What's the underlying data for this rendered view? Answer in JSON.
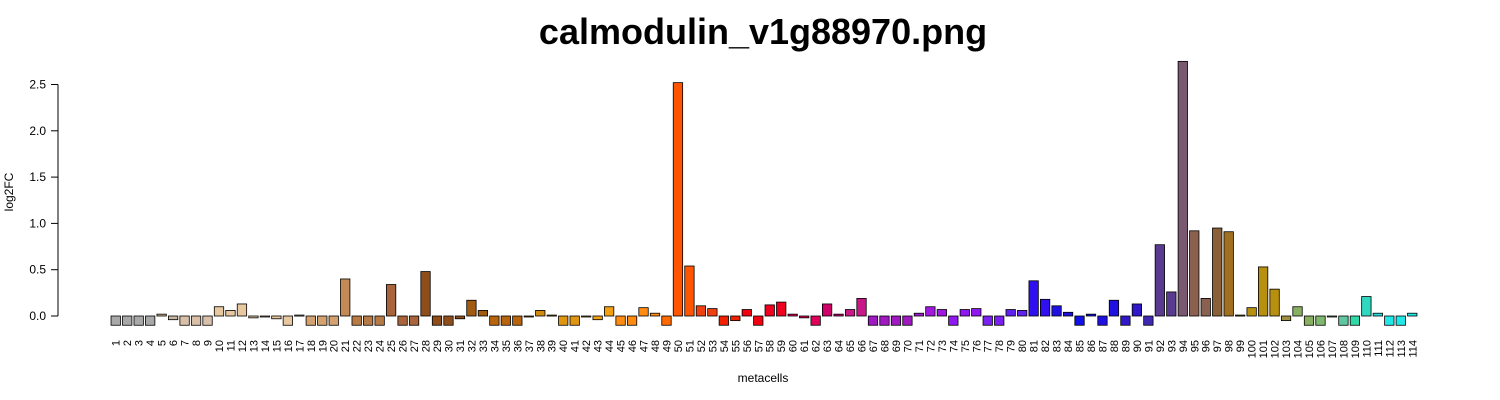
{
  "chart_data": {
    "type": "bar",
    "title": "calmodulin_v1g88970.png",
    "xlabel": "metacells",
    "ylabel": "log2FC",
    "ylim": [
      -0.1,
      2.75
    ],
    "yticks": [
      0.0,
      0.5,
      1.0,
      1.5,
      2.0,
      2.5
    ],
    "ytick_labels": [
      "0.0",
      "0.5",
      "1.0",
      "1.5",
      "2.0",
      "2.5"
    ],
    "grid": false,
    "categories": [
      "1",
      "2",
      "3",
      "4",
      "5",
      "6",
      "7",
      "8",
      "9",
      "10",
      "11",
      "12",
      "13",
      "14",
      "15",
      "16",
      "17",
      "18",
      "19",
      "20",
      "21",
      "22",
      "23",
      "24",
      "25",
      "26",
      "27",
      "28",
      "29",
      "30",
      "31",
      "32",
      "33",
      "34",
      "35",
      "36",
      "37",
      "38",
      "39",
      "40",
      "41",
      "42",
      "43",
      "44",
      "45",
      "46",
      "47",
      "48",
      "49",
      "50",
      "51",
      "52",
      "53",
      "54",
      "55",
      "56",
      "57",
      "58",
      "59",
      "60",
      "61",
      "62",
      "63",
      "64",
      "65",
      "66",
      "67",
      "68",
      "69",
      "70",
      "71",
      "72",
      "73",
      "74",
      "75",
      "76",
      "77",
      "78",
      "79",
      "80",
      "81",
      "82",
      "83",
      "84",
      "85",
      "86",
      "87",
      "88",
      "89",
      "90",
      "91",
      "92",
      "93",
      "94",
      "95",
      "96",
      "97",
      "98",
      "99",
      "100",
      "101",
      "102",
      "103",
      "104",
      "105",
      "106",
      "107",
      "108",
      "109",
      "110",
      "111",
      "112",
      "113",
      "114"
    ],
    "values": [
      -0.1,
      -0.1,
      -0.1,
      -0.1,
      0.02,
      -0.04,
      -0.1,
      -0.1,
      -0.1,
      0.1,
      0.06,
      0.13,
      -0.02,
      -0.01,
      -0.03,
      -0.1,
      0.01,
      -0.1,
      -0.1,
      -0.1,
      0.4,
      -0.1,
      -0.1,
      -0.1,
      0.34,
      -0.1,
      -0.1,
      0.48,
      -0.1,
      -0.1,
      -0.03,
      0.17,
      0.06,
      -0.1,
      -0.1,
      -0.1,
      -0.01,
      0.06,
      0.01,
      -0.1,
      -0.1,
      0.0,
      -0.04,
      0.1,
      -0.1,
      -0.1,
      0.09,
      0.03,
      -0.1,
      2.52,
      0.54,
      0.11,
      0.08,
      -0.1,
      -0.05,
      0.07,
      -0.1,
      0.12,
      0.15,
      0.02,
      -0.02,
      -0.1,
      0.13,
      0.02,
      0.07,
      0.19,
      -0.1,
      -0.1,
      -0.1,
      -0.1,
      0.03,
      0.1,
      0.07,
      -0.1,
      0.07,
      0.08,
      -0.1,
      -0.1,
      0.07,
      0.06,
      0.38,
      0.18,
      0.11,
      0.04,
      -0.1,
      0.02,
      -0.1,
      0.17,
      -0.1,
      0.13,
      -0.1,
      0.77,
      0.26,
      2.75,
      0.92,
      0.19,
      0.95,
      0.91,
      0.01,
      0.09,
      0.53,
      0.29,
      -0.05,
      0.1,
      -0.1,
      -0.1,
      0.0,
      -0.1,
      -0.1,
      0.21,
      0.03,
      -0.1,
      -0.1,
      0.03
    ],
    "colors": [
      "#A8A8A8",
      "#A8A8A8",
      "#A8A8A8",
      "#A8A8A8",
      "#D7B98E",
      "#C9B6A0",
      "#D8C1A8",
      "#D8C1A8",
      "#D8C1A8",
      "#E8C8A0",
      "#E8C8A0",
      "#E8C8A0",
      "#E8C8A0",
      "#E8C8A0",
      "#E8C8A0",
      "#E8C8A0",
      "#E8C8A0",
      "#D4A271",
      "#D4A271",
      "#D4A271",
      "#C38A56",
      "#B87A45",
      "#B87A45",
      "#B87A45",
      "#A8643A",
      "#A8643A",
      "#A8643A",
      "#8E4E1C",
      "#8E4E1C",
      "#8E4E1C",
      "#8E4E1C",
      "#A25A10",
      "#A25A10",
      "#B8640C",
      "#B8640C",
      "#B8640C",
      "#C87A12",
      "#D08A10",
      "#D08A10",
      "#E09510",
      "#E09510",
      "#E09510",
      "#F0A010",
      "#F0A010",
      "#FF8C10",
      "#FF8C10",
      "#FF8C10",
      "#FF8C10",
      "#FF6A00",
      "#FF5500",
      "#FF5500",
      "#F04010",
      "#F04010",
      "#F02000",
      "#F02000",
      "#F00010",
      "#F00010",
      "#F00020",
      "#F00020",
      "#E0005A",
      "#E0005A",
      "#E0005A",
      "#D0006A",
      "#D0006A",
      "#C81888",
      "#C81888",
      "#A018C0",
      "#A018C0",
      "#A018C0",
      "#A018C0",
      "#A018D0",
      "#A018E0",
      "#A018E0",
      "#8F18F0",
      "#8F18F0",
      "#8F18F0",
      "#7A20F0",
      "#7A20F0",
      "#6020F0",
      "#6020F0",
      "#3010F0",
      "#3010F0",
      "#2010E0",
      "#2010E0",
      "#1010E8",
      "#1010E8",
      "#2010E0",
      "#2010E0",
      "#3018C8",
      "#3018C8",
      "#4028B0",
      "#5A3A90",
      "#5A3A90",
      "#7A5870",
      "#8A6050",
      "#8A6050",
      "#8A6038",
      "#A07020",
      "#A07020",
      "#B89010",
      "#B89010",
      "#B89010",
      "#A09040",
      "#88B060",
      "#88B060",
      "#80B870",
      "#60C880",
      "#60C8A0",
      "#30D8A8",
      "#30D8C0",
      "#20E0E0",
      "#20E8E8",
      "#20E8E8",
      "#20E8E8"
    ]
  }
}
